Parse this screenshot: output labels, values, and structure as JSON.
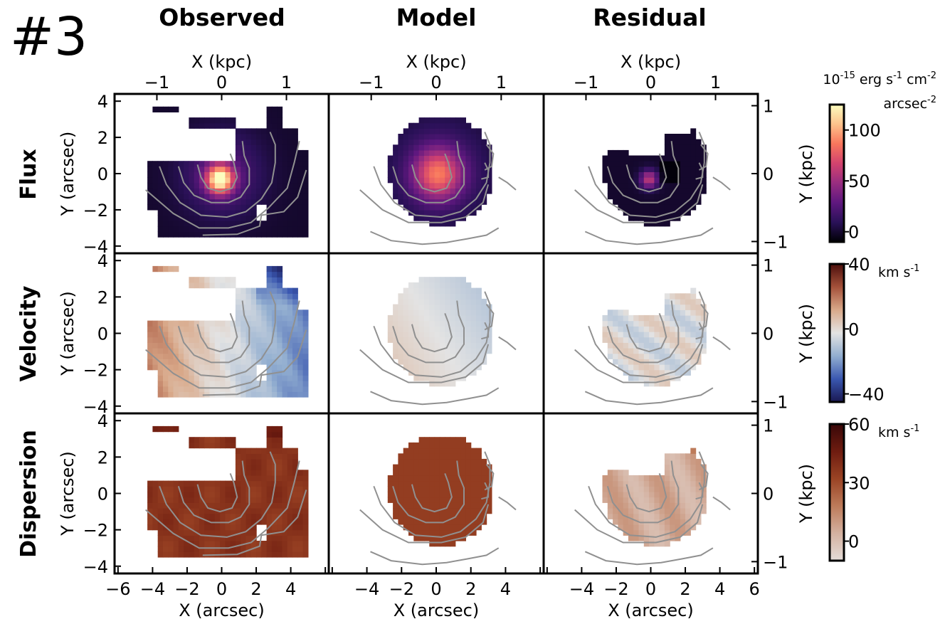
{
  "figure_label": "#3",
  "columns": [
    "Observed",
    "Model",
    "Residual"
  ],
  "rows": [
    "Flux",
    "Velocity",
    "Dispersion"
  ],
  "colors": {
    "flux": [
      "#000004",
      "#2a1158",
      "#5f187f",
      "#982d80",
      "#d3436e",
      "#f8765c",
      "#fdc28c",
      "#fcfdbf"
    ],
    "velocity": [
      "#1a1852",
      "#3a57b0",
      "#92aed0",
      "#e3e3e3",
      "#d9a98a",
      "#a4513a",
      "#4c0f0c"
    ],
    "dispersion": [
      "#e4dcd8",
      "#d4b1a0",
      "#bd7b5a",
      "#9a4324",
      "#6e1c10",
      "#380708"
    ],
    "contour": "#909090"
  },
  "chart_data": {
    "type": "heatmap",
    "panel_grid": "3 rows x 3 columns",
    "top_axis": {
      "label": "X (kpc)",
      "ticks": [
        "−1",
        "0",
        "1"
      ]
    },
    "bottom_axis": {
      "label": "X (arcsec)",
      "ticks": [
        "−6",
        "−4",
        "−2",
        "0",
        "2",
        "4",
        "6"
      ],
      "range": [
        -6.2,
        6.2
      ]
    },
    "left_axis": {
      "label": "Y (arcsec)",
      "ticks": [
        "4",
        "2",
        "0",
        "−2",
        "−4"
      ],
      "range": [
        -4.4,
        4.4
      ]
    },
    "right_axis": {
      "label": "Y (kpc)",
      "ticks": [
        "1",
        "0",
        "−1"
      ]
    },
    "contours": "grey flux contours overlaid on every panel",
    "colorbars": [
      {
        "row": "Flux",
        "unit_lines": [
          "10-15 erg s-1 cm-2",
          "arcsec-2"
        ],
        "unit": {
          "base": "10",
          "exp": "-15",
          "parts": [
            [
              "erg s",
              "-1"
            ],
            [
              "cm",
              "-2"
            ]
          ],
          "line2": [
            "arcsec",
            "-2"
          ]
        },
        "ticks": [
          "100",
          "50",
          "0"
        ],
        "range": [
          -10,
          125
        ]
      },
      {
        "row": "Velocity",
        "unit": {
          "base": "km s",
          "exp": "-1"
        },
        "ticks": [
          "40",
          "0",
          "−40"
        ],
        "range": [
          -45,
          40
        ]
      },
      {
        "row": "Dispersion",
        "unit": {
          "base": "km s",
          "exp": "-1"
        },
        "ticks": [
          "60",
          "30",
          "0"
        ],
        "range": [
          -10,
          60
        ]
      }
    ],
    "maps": {
      "observed_flux_peak": 120,
      "model_flux_peak": 75,
      "residual_flux_peak": 45,
      "observed_velocity_range": [
        -40,
        25
      ],
      "model_velocity_range": [
        -10,
        10
      ],
      "observed_dispersion_typical": 40,
      "model_dispersion": 38
    }
  }
}
